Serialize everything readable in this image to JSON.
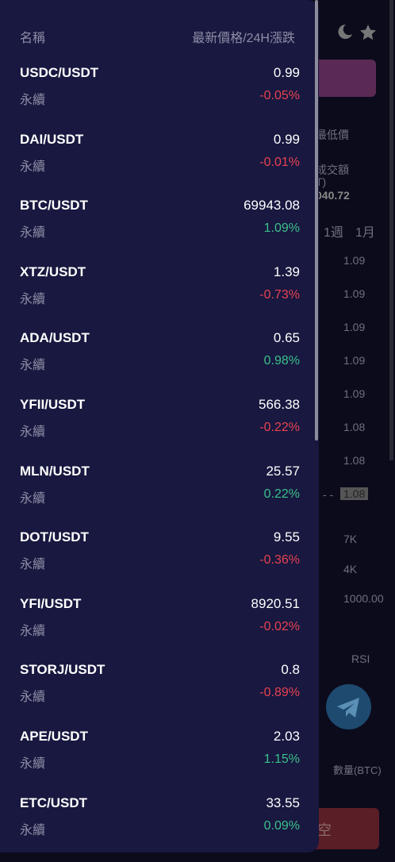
{
  "drawer": {
    "header": {
      "name_label": "名稱",
      "price_label": "最新價格/24H漲跌"
    },
    "rows": [
      {
        "pair": "USDC/USDT",
        "type": "永續",
        "price": "0.99",
        "change": "-0.05%"
      },
      {
        "pair": "DAI/USDT",
        "type": "永續",
        "price": "0.99",
        "change": "-0.01%"
      },
      {
        "pair": "BTC/USDT",
        "type": "永續",
        "price": "69943.08",
        "change": "1.09%"
      },
      {
        "pair": "XTZ/USDT",
        "type": "永續",
        "price": "1.39",
        "change": "-0.73%"
      },
      {
        "pair": "ADA/USDT",
        "type": "永續",
        "price": "0.65",
        "change": "0.98%"
      },
      {
        "pair": "YFII/USDT",
        "type": "永續",
        "price": "566.38",
        "change": "-0.22%"
      },
      {
        "pair": "MLN/USDT",
        "type": "永續",
        "price": "25.57",
        "change": "0.22%"
      },
      {
        "pair": "DOT/USDT",
        "type": "永續",
        "price": "9.55",
        "change": "-0.36%"
      },
      {
        "pair": "YFI/USDT",
        "type": "永續",
        "price": "8920.51",
        "change": "-0.02%"
      },
      {
        "pair": "STORJ/USDT",
        "type": "永續",
        "price": "0.8",
        "change": "-0.89%"
      },
      {
        "pair": "APE/USDT",
        "type": "永續",
        "price": "2.03",
        "change": "1.15%"
      },
      {
        "pair": "ETC/USDT",
        "type": "永續",
        "price": "33.55",
        "change": "0.09%"
      }
    ],
    "up_color": "#3cc08a",
    "down_color": "#e8424f"
  },
  "background": {
    "low_label": "最低價",
    "volume_label": "成交額",
    "volume_unit": "T)",
    "volume_value": "040.72",
    "tab_week": "1週",
    "tab_month": "1月",
    "prices": [
      "1.09",
      "1.09",
      "1.09",
      "1.09",
      "1.09",
      "1.08",
      "1.08",
      "1.08"
    ],
    "dash": "- -",
    "depth": [
      "7K",
      "4K",
      "1000.00"
    ],
    "indicator": "RSI",
    "qty_label": "數量(BTC)",
    "short_button": "空"
  }
}
